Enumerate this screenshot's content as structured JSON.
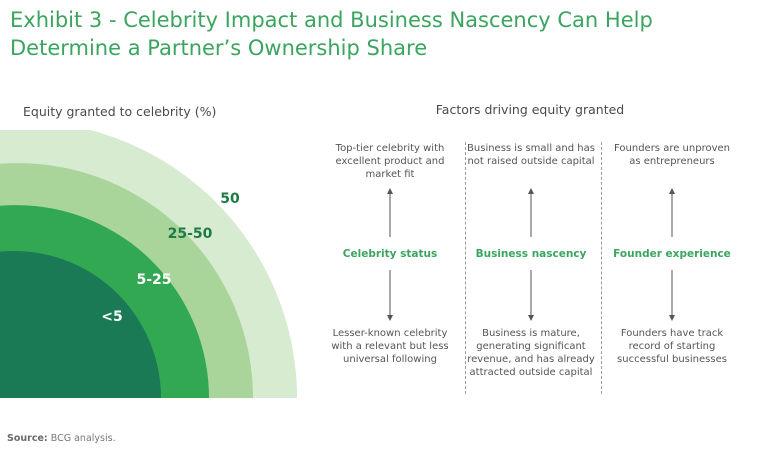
{
  "title": {
    "line1": "Exhibit 3 - Celebrity Impact and Business Nascency Can Help",
    "line2": "Determine a Partner’s Ownership Share"
  },
  "left_heading": "Equity granted to celebrity (%)",
  "right_heading": "Factors driving equity granted",
  "rings": [
    {
      "label": "50",
      "color": "#d6ebcf"
    },
    {
      "label": "25-50",
      "color": "#a9d59b"
    },
    {
      "label": "5-25",
      "color": "#33a853"
    },
    {
      "label": "<5",
      "color": "#1a7a55"
    }
  ],
  "label_colors": {
    "dark": "#1e7a46",
    "light": "#ffffff"
  },
  "factors": [
    {
      "name": "Celebrity status",
      "top": "Top-tier celebrity with excellent product and market fit",
      "bottom": "Lesser-known celebrity with a relevant but less universal following"
    },
    {
      "name": "Business nascency",
      "top": "Business is small and has not raised outside capital",
      "bottom": "Business is mature, generating significant revenue, and has already attracted outside capital"
    },
    {
      "name": "Founder experience",
      "top": "Founders are unproven as entrepreneurs",
      "bottom": "Founders have track record of starting successful businesses"
    }
  ],
  "source": {
    "label": "Source:",
    "text": "BCG analysis."
  }
}
